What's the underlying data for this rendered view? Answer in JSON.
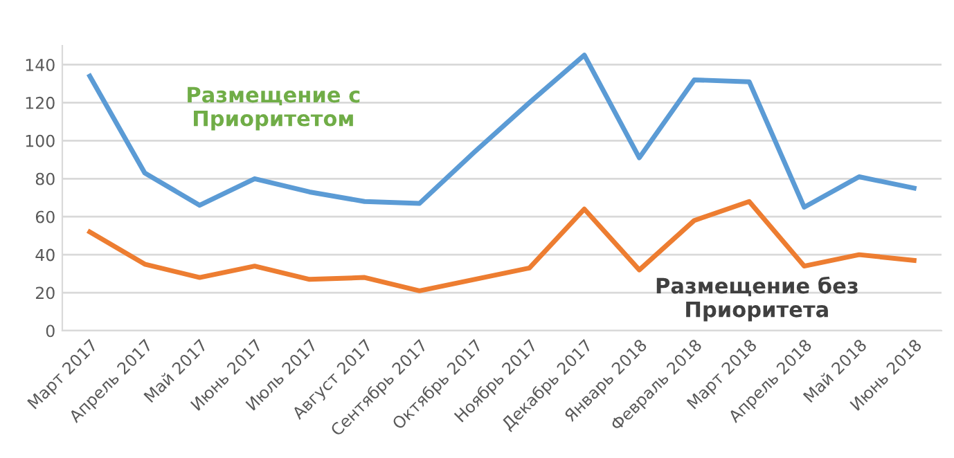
{
  "chart_data": {
    "type": "line",
    "categories": [
      "Март 2017",
      "Апрель 2017",
      "Май 2017",
      "Июнь 2017",
      "Июль 2017",
      "Август 2017",
      "Сентябрь 2017",
      "Октябрь 2017",
      "Ноябрь 2017",
      "Декабрь 2017",
      "Январь 2018",
      "Февраль 2018",
      "Март 2018",
      "Апрель 2018",
      "Май 2018",
      "Июнь 2018"
    ],
    "series": [
      {
        "name": "Размещение с Приоритетом",
        "color": "#5b9bd5",
        "values": [
          134,
          83,
          66,
          80,
          73,
          68,
          67,
          94,
          120,
          145,
          91,
          132,
          131,
          65,
          81,
          75
        ]
      },
      {
        "name": "Размещение без Приоритета",
        "color": "#ed7d31",
        "values": [
          52,
          35,
          28,
          34,
          27,
          28,
          21,
          27,
          33,
          64,
          32,
          58,
          68,
          34,
          40,
          37
        ]
      }
    ],
    "ylim": [
      0,
      150
    ],
    "yticks": [
      0,
      20,
      40,
      60,
      80,
      100,
      120,
      140
    ],
    "grid": "y",
    "legend": false,
    "marker": "none",
    "line_style": "solid"
  }
}
